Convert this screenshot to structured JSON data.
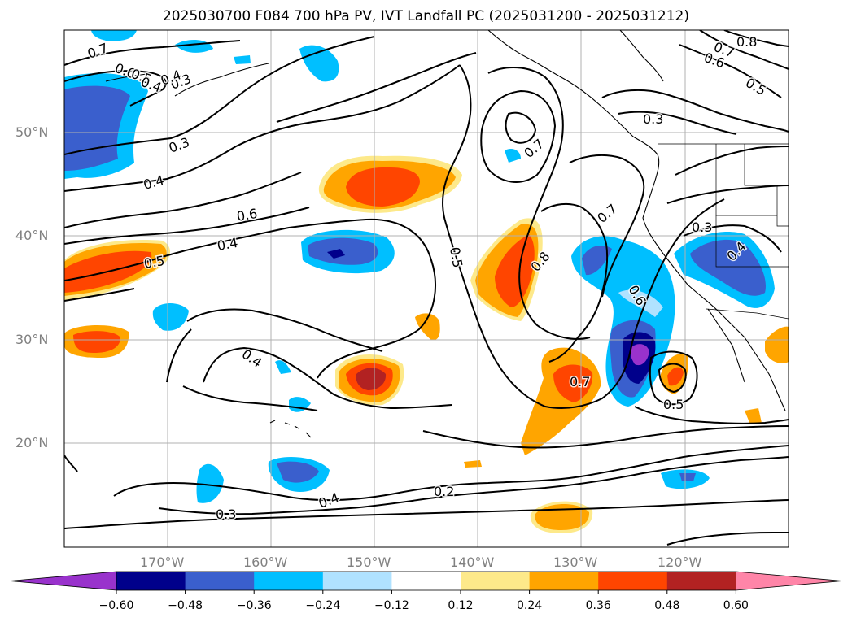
{
  "title": "2025030700 F084 700 hPa PV, IVT Landfall PC (2025031200 - 2025031212)",
  "latitude_labels": [
    "50°N",
    "40°N",
    "30°N",
    "20°N"
  ],
  "longitude_labels": [
    "170°W",
    "160°W",
    "150°W",
    "140°W",
    "130°W",
    "120°W"
  ],
  "contour_labels": [
    "0.7",
    "0.6",
    "0.5",
    "0.4",
    "0.3",
    "0.3",
    "0.4",
    "0.6",
    "0.4",
    "0.5",
    "0.4",
    "0.5",
    "0.7",
    "0.8",
    "0.7",
    "0.6",
    "0.7",
    "0.5",
    "0.3",
    "0.4",
    "0.3",
    "0.4",
    "0.2",
    "0.3",
    "0.4",
    "0.8",
    "0.7",
    "0.6",
    "0.5"
  ],
  "colorbar": {
    "ticks": [
      "−0.60",
      "−0.48",
      "−0.36",
      "−0.24",
      "−0.12",
      "0.12",
      "0.24",
      "0.36",
      "0.48",
      "0.60"
    ],
    "colors": [
      "#9932cc",
      "#00008b",
      "#3a5fcd",
      "#00bfff",
      "#b0e2ff",
      "#ffffff",
      "#fde98a",
      "#ffa500",
      "#ff4500",
      "#b22222",
      "#ff85a8"
    ]
  }
}
